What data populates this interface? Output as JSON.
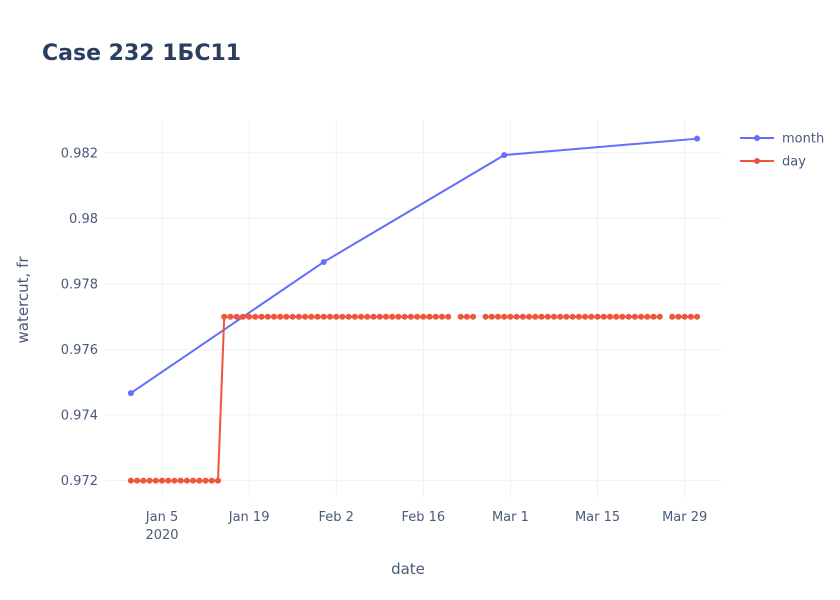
{
  "chart_data": {
    "type": "line",
    "title": "Case 232 1БС11",
    "xlabel": "date",
    "ylabel": "watercut, fr",
    "x_range": [
      "2019-12-27",
      "2020-04-04"
    ],
    "ylim": [
      0.9715,
      0.983
    ],
    "x_ticks": [
      {
        "date": "2020-01-05",
        "label": "Jan 5",
        "sublabel": "2020"
      },
      {
        "date": "2020-01-19",
        "label": "Jan 19"
      },
      {
        "date": "2020-02-02",
        "label": "Feb 2"
      },
      {
        "date": "2020-02-16",
        "label": "Feb 16"
      },
      {
        "date": "2020-03-01",
        "label": "Mar 1"
      },
      {
        "date": "2020-03-15",
        "label": "Mar 15"
      },
      {
        "date": "2020-03-29",
        "label": "Mar 29"
      }
    ],
    "y_ticks": [
      {
        "value": 0.972,
        "label": "0.972"
      },
      {
        "value": 0.974,
        "label": "0.974"
      },
      {
        "value": 0.976,
        "label": "0.976"
      },
      {
        "value": 0.978,
        "label": "0.978"
      },
      {
        "value": 0.98,
        "label": "0.98"
      },
      {
        "value": 0.982,
        "label": "0.982"
      }
    ],
    "grid": true,
    "legend_position": "top-right",
    "series": [
      {
        "name": "month",
        "color": "#636efa",
        "x": [
          "2019-12-31",
          "2020-01-31",
          "2020-02-29",
          "2020-03-31"
        ],
        "y": [
          0.97467,
          0.97867,
          0.98193,
          0.98243
        ]
      },
      {
        "name": "day",
        "color": "#ef553b",
        "x": [
          "2019-12-31",
          "2020-01-01",
          "2020-01-02",
          "2020-01-03",
          "2020-01-04",
          "2020-01-05",
          "2020-01-06",
          "2020-01-07",
          "2020-01-08",
          "2020-01-09",
          "2020-01-10",
          "2020-01-11",
          "2020-01-12",
          "2020-01-13",
          "2020-01-14",
          "2020-01-15",
          "2020-01-16",
          "2020-01-17",
          "2020-01-18",
          "2020-01-19",
          "2020-01-20",
          "2020-01-21",
          "2020-01-22",
          "2020-01-23",
          "2020-01-24",
          "2020-01-25",
          "2020-01-26",
          "2020-01-27",
          "2020-01-28",
          "2020-01-29",
          "2020-01-30",
          "2020-01-31",
          "2020-02-01",
          "2020-02-02",
          "2020-02-03",
          "2020-02-04",
          "2020-02-05",
          "2020-02-06",
          "2020-02-07",
          "2020-02-08",
          "2020-02-09",
          "2020-02-10",
          "2020-02-11",
          "2020-02-12",
          "2020-02-13",
          "2020-02-14",
          "2020-02-15",
          "2020-02-16",
          "2020-02-17",
          "2020-02-18",
          "2020-02-19",
          "2020-02-20",
          "2020-02-22",
          "2020-02-23",
          "2020-02-24",
          "2020-02-26",
          "2020-02-27",
          "2020-02-28",
          "2020-02-29",
          "2020-03-01",
          "2020-03-02",
          "2020-03-03",
          "2020-03-04",
          "2020-03-05",
          "2020-03-06",
          "2020-03-07",
          "2020-03-08",
          "2020-03-09",
          "2020-03-10",
          "2020-03-11",
          "2020-03-12",
          "2020-03-13",
          "2020-03-14",
          "2020-03-15",
          "2020-03-16",
          "2020-03-17",
          "2020-03-18",
          "2020-03-19",
          "2020-03-20",
          "2020-03-21",
          "2020-03-22",
          "2020-03-23",
          "2020-03-24",
          "2020-03-25",
          "2020-03-27",
          "2020-03-28",
          "2020-03-29",
          "2020-03-30",
          "2020-03-31"
        ],
        "y": [
          0.972,
          0.972,
          0.972,
          0.972,
          0.972,
          0.972,
          0.972,
          0.972,
          0.972,
          0.972,
          0.972,
          0.972,
          0.972,
          0.972,
          0.972,
          0.977,
          0.977,
          0.977,
          0.977,
          0.977,
          0.977,
          0.977,
          0.977,
          0.977,
          0.977,
          0.977,
          0.977,
          0.977,
          0.977,
          0.977,
          0.977,
          0.977,
          0.977,
          0.977,
          0.977,
          0.977,
          0.977,
          0.977,
          0.977,
          0.977,
          0.977,
          0.977,
          0.977,
          0.977,
          0.977,
          0.977,
          0.977,
          0.977,
          0.977,
          0.977,
          0.977,
          0.977,
          0.977,
          0.977,
          0.977,
          0.977,
          0.977,
          0.977,
          0.977,
          0.977,
          0.977,
          0.977,
          0.977,
          0.977,
          0.977,
          0.977,
          0.977,
          0.977,
          0.977,
          0.977,
          0.977,
          0.977,
          0.977,
          0.977,
          0.977,
          0.977,
          0.977,
          0.977,
          0.977,
          0.977,
          0.977,
          0.977,
          0.977,
          0.977,
          0.977,
          0.977,
          0.977,
          0.977,
          0.977
        ]
      }
    ]
  }
}
